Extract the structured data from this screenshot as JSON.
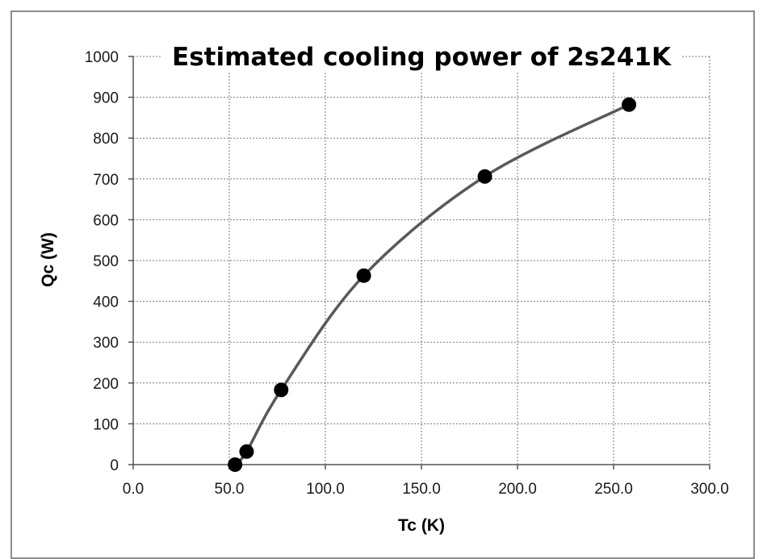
{
  "chart_data": {
    "type": "scatter",
    "title": "Estimated cooling power of 2s241K",
    "xlabel": "Tc (K)",
    "ylabel": "Qc (W)",
    "xlim": [
      0,
      300
    ],
    "ylim": [
      0,
      1000
    ],
    "x_ticks": [
      "0.0",
      "50.0",
      "100.0",
      "150.0",
      "200.0",
      "250.0",
      "300.0"
    ],
    "y_ticks": [
      "0",
      "100",
      "200",
      "300",
      "400",
      "500",
      "600",
      "700",
      "800",
      "900",
      "1000"
    ],
    "grid": true,
    "series": [
      {
        "points": [
          {
            "x": 53,
            "y": 0
          },
          {
            "x": 59,
            "y": 32
          },
          {
            "x": 77,
            "y": 183
          },
          {
            "x": 120,
            "y": 463
          },
          {
            "x": 183,
            "y": 706
          },
          {
            "x": 258,
            "y": 882
          }
        ],
        "marker_color": "#000000",
        "trend_color": "#595959"
      }
    ]
  }
}
